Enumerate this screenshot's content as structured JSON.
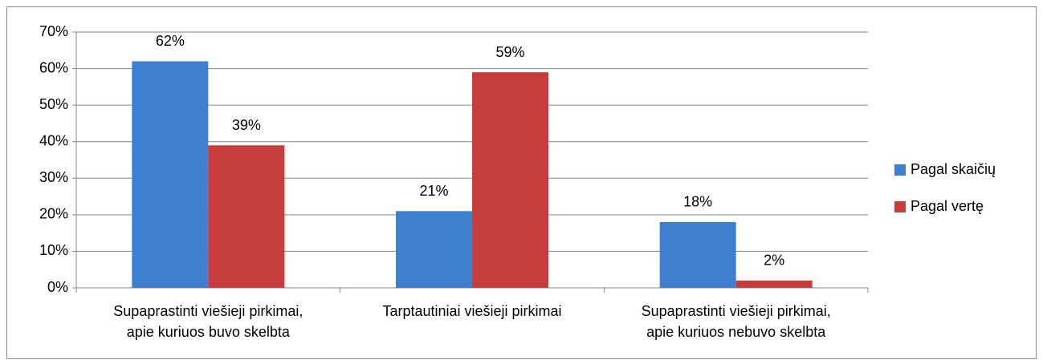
{
  "chart_data": {
    "type": "bar",
    "categories": [
      [
        "Supaprastinti viešieji pirkimai,",
        "apie kuriuos buvo skelbta"
      ],
      [
        "Tarptautiniai viešieji pirkimai"
      ],
      [
        "Supaprastinti viešieji pirkimai,",
        "apie kuriuos nebuvo skelbta"
      ]
    ],
    "series": [
      {
        "name": "Pagal skaičių",
        "color": "#3f7fd0",
        "values": [
          62,
          21,
          18
        ],
        "value_labels": [
          "62%",
          "21%",
          "18%"
        ]
      },
      {
        "name": "Pagal vertę",
        "color": "#c63d3b",
        "values": [
          39,
          59,
          2
        ],
        "value_labels": [
          "39%",
          "59%",
          "2%"
        ]
      }
    ],
    "ylim": [
      0,
      70
    ],
    "yticks": [
      {
        "value": 0,
        "label": "0%"
      },
      {
        "value": 10,
        "label": "10%"
      },
      {
        "value": 20,
        "label": "20%"
      },
      {
        "value": 30,
        "label": "30%"
      },
      {
        "value": 40,
        "label": "40%"
      },
      {
        "value": 50,
        "label": "50%"
      },
      {
        "value": 60,
        "label": "60%"
      },
      {
        "value": 70,
        "label": "70%"
      }
    ],
    "grid": true,
    "legend": "right"
  }
}
